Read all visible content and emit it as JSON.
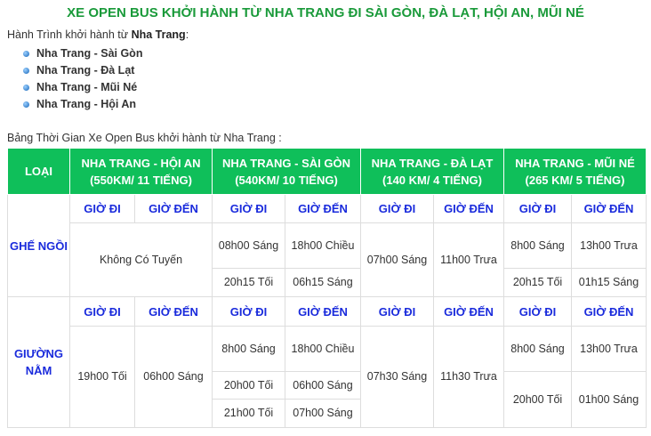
{
  "title": "XE OPEN BUS KHỞI HÀNH TỪ NHA TRANG ĐI SÀI GÒN, ĐÀ LẠT, HỘI AN, MŨI NÉ",
  "intro": {
    "prefix": "Hành Trình khởi hành từ ",
    "place": "Nha Trang",
    ":": ":"
  },
  "routes": [
    "Nha Trang - Sài Gòn",
    "Nha Trang - Đà Lạt",
    "Nha Trang - Mũi Né",
    "Nha Trang - Hội An"
  ],
  "caption": "Bảng Thời Gian Xe Open Bus khởi hành từ Nha Trang :",
  "table": {
    "headers": [
      "LOẠI",
      "NHA TRANG - HỘI AN (550KM/ 11 TIẾNG)",
      "NHA TRANG - SÀI GÒN (540KM/ 10 TIẾNG)",
      "NHA TRANG - ĐÀ LẠT (140 KM/ 4 TIẾNG)",
      "NHA TRANG - MŨI NÉ (265 KM/ 5 TIẾNG)"
    ],
    "depart": "GIỜ ĐI",
    "arrive": "GIỜ ĐẾN",
    "seat": {
      "label": "GHẾ NGỒI",
      "hoian": "Không Có Tuyến",
      "saigon": [
        [
          "08h00 Sáng",
          "18h00 Chiều"
        ],
        [
          "20h15 Tối",
          "06h15 Sáng"
        ]
      ],
      "dalat": [
        "07h00 Sáng",
        "11h00 Trưa"
      ],
      "muine": [
        [
          "8h00 Sáng",
          "13h00 Trưa"
        ],
        [
          "20h15 Tối",
          "01h15 Sáng"
        ]
      ]
    },
    "bed": {
      "label": "GIƯỜNG NẰM",
      "hoian": [
        "19h00 Tối",
        "06h00 Sáng"
      ],
      "saigon": [
        [
          "8h00 Sáng",
          "18h00 Chiều"
        ],
        [
          "20h00 Tối",
          "06h00 Sáng"
        ],
        [
          "21h00 Tối",
          "07h00 Sáng"
        ]
      ],
      "dalat": [
        "07h30 Sáng",
        "11h30 Trưa"
      ],
      "muine": [
        [
          "8h00 Sáng",
          "13h00 Trưa"
        ],
        [
          "20h00 Tối",
          "01h00 Sáng"
        ]
      ]
    }
  },
  "colors": {
    "header": "#0fbf5a",
    "title": "#1a9a3a",
    "accent": "#1a2bdc"
  }
}
